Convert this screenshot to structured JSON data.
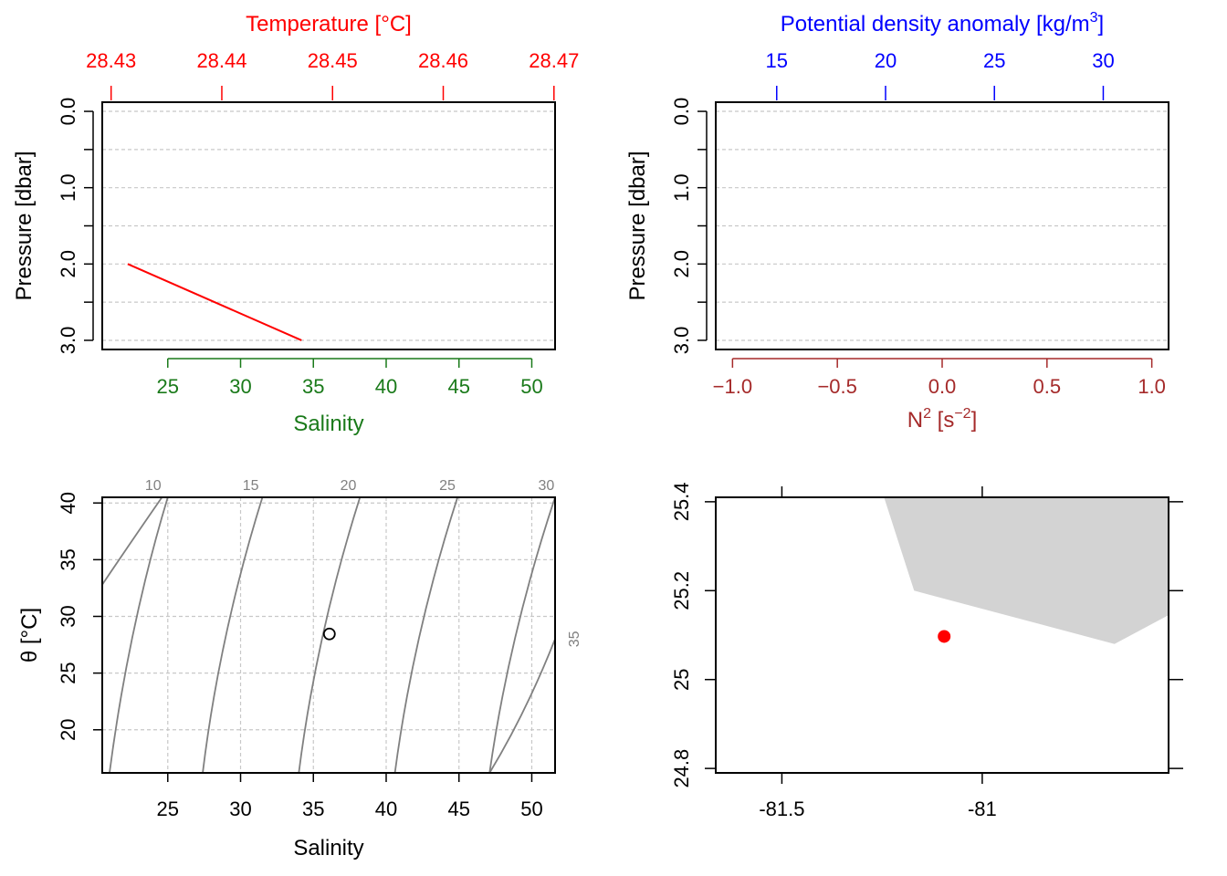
{
  "colors": {
    "temperature": "#ff0000",
    "salinity": "#1a7a1a",
    "density": "#0000ff",
    "n2": "#a52a2a",
    "isopycnal": "#808080",
    "grid": "#c8c8c8",
    "land": "#d3d3d3",
    "station": "#ff0000",
    "black": "#000000"
  },
  "chart_data": [
    {
      "id": "profile-ts",
      "type": "line",
      "top_axis": {
        "label": "Temperature [°C]",
        "ticks": [
          28.43,
          28.44,
          28.45,
          28.46,
          28.47
        ],
        "tick_labels": [
          "28.43",
          "28.44",
          "28.45",
          "28.46",
          "28.47"
        ],
        "range": [
          28.4292,
          28.4701
        ]
      },
      "bottom_axis": {
        "label": "Salinity",
        "ticks": [
          25,
          30,
          35,
          40,
          45,
          50
        ],
        "tick_labels": [
          "25",
          "30",
          "35",
          "40",
          "45",
          "50"
        ],
        "range": [
          20.5,
          51.6
        ]
      },
      "y_axis": {
        "label": "Pressure [dbar]",
        "ticks": [
          0.0,
          1.0,
          2.0,
          3.0
        ],
        "tick_labels": [
          "0.0",
          "1.0",
          "2.0",
          "3.0"
        ],
        "minor_ticks": [
          0.5,
          1.5,
          2.5
        ],
        "range": [
          -0.12,
          3.12
        ],
        "reversed": true
      },
      "grid": true,
      "series": [
        {
          "kind": "temperature",
          "points": [
            [
              28.4315,
              2.0
            ],
            [
              28.4472,
              3.0
            ]
          ]
        }
      ]
    },
    {
      "id": "profile-density",
      "type": "line",
      "top_axis": {
        "label_main": "Potential density anomaly [kg/m",
        "label_sup": "3",
        "label_end": "]",
        "ticks": [
          15,
          20,
          25,
          30
        ],
        "tick_labels": [
          "15",
          "20",
          "25",
          "30"
        ],
        "range": [
          12.2,
          33.0
        ]
      },
      "bottom_axis": {
        "label_main": "N",
        "label_sup1": "2",
        "label_mid": " [s",
        "label_sup2": "−2",
        "label_end": "]",
        "ticks": [
          -1.0,
          -0.5,
          0.0,
          0.5,
          1.0
        ],
        "tick_labels": [
          "−1.0",
          "−0.5",
          "0.0",
          "0.5",
          "1.0"
        ],
        "range": [
          -1.08,
          1.08
        ]
      },
      "y_axis": {
        "label": "Pressure [dbar]",
        "ticks": [
          0.0,
          1.0,
          2.0,
          3.0
        ],
        "tick_labels": [
          "0.0",
          "1.0",
          "2.0",
          "3.0"
        ],
        "minor_ticks": [
          0.5,
          1.5,
          2.5
        ],
        "range": [
          -0.12,
          3.12
        ],
        "reversed": true
      },
      "grid": true,
      "series": []
    },
    {
      "id": "ts-diagram",
      "type": "scatter",
      "x_axis": {
        "label": "Salinity",
        "ticks": [
          25,
          30,
          35,
          40,
          45,
          50
        ],
        "tick_labels": [
          "25",
          "30",
          "35",
          "40",
          "45",
          "50"
        ],
        "range": [
          20.5,
          51.6
        ]
      },
      "y_axis": {
        "label": "θ [°C]",
        "ticks": [
          20,
          25,
          30,
          35,
          40
        ],
        "tick_labels": [
          "20",
          "25",
          "30",
          "35",
          "40"
        ],
        "range": [
          16.2,
          40.5
        ]
      },
      "grid": true,
      "isopycnals": [
        {
          "label": "10",
          "points": [
            [
              20.5,
              32.8
            ],
            [
              24.2,
              22.0
            ],
            [
              21.0,
              16.2
            ],
            [
              25.0,
              40.5
            ]
          ]
        },
        {
          "label": "15",
          "points": [
            [
              27.4,
              16.2
            ],
            [
              31.5,
              40.5
            ]
          ]
        },
        {
          "label": "20",
          "points": [
            [
              34.0,
              16.2
            ],
            [
              38.2,
              40.5
            ]
          ]
        },
        {
          "label": "25",
          "points": [
            [
              40.6,
              16.2
            ],
            [
              44.9,
              40.5
            ]
          ]
        },
        {
          "label": "30",
          "points": [
            [
              47.1,
              16.2
            ],
            [
              51.6,
              40.5
            ]
          ]
        },
        {
          "label": "35",
          "points": [
            [
              51.6,
              28.0
            ]
          ]
        }
      ],
      "points": [
        [
          36.1,
          28.45
        ]
      ]
    },
    {
      "id": "station-map",
      "type": "map",
      "x_axis": {
        "ticks": [
          -81.5,
          -81.0
        ],
        "tick_labels": [
          "-81.5",
          "-81"
        ],
        "range": [
          -81.665,
          -80.535
        ]
      },
      "y_axis": {
        "ticks": [
          24.8,
          25.0,
          25.2,
          25.4
        ],
        "tick_labels": [
          "24.8",
          "25",
          "25.2",
          "25.4"
        ],
        "range": [
          24.79,
          25.41
        ]
      },
      "land": [
        [
          -81.245,
          25.41
        ],
        [
          -81.17,
          25.2
        ],
        [
          -80.67,
          25.08
        ],
        [
          -80.535,
          25.145
        ],
        [
          -80.535,
          25.41
        ]
      ],
      "station": [
        -81.095,
        25.097
      ]
    }
  ]
}
